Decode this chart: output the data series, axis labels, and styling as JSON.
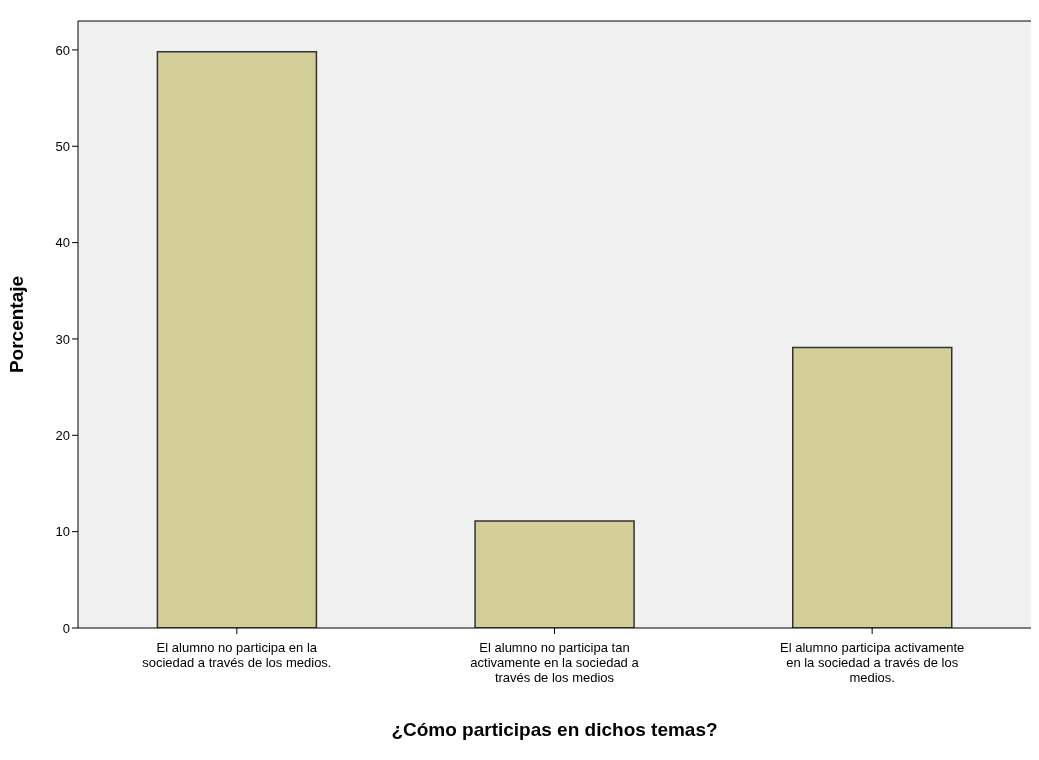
{
  "chart_data": {
    "type": "bar",
    "xlabel": "¿Cómo participas en dichos temas?",
    "ylabel": "Porcentaje",
    "categories": [
      "El alumno no participa en la sociedad a través de los medios.",
      "El alumno no participa tan activamente en la sociedad a través de los medios",
      "El alumno participa activamente en la sociedad a través de los medios."
    ],
    "values": [
      59.8,
      11.1,
      29.1
    ],
    "color": "#d3ce97",
    "ylim": [
      0,
      63
    ],
    "yticks": [
      0,
      10,
      20,
      30,
      40,
      50,
      60
    ],
    "grid": false
  }
}
